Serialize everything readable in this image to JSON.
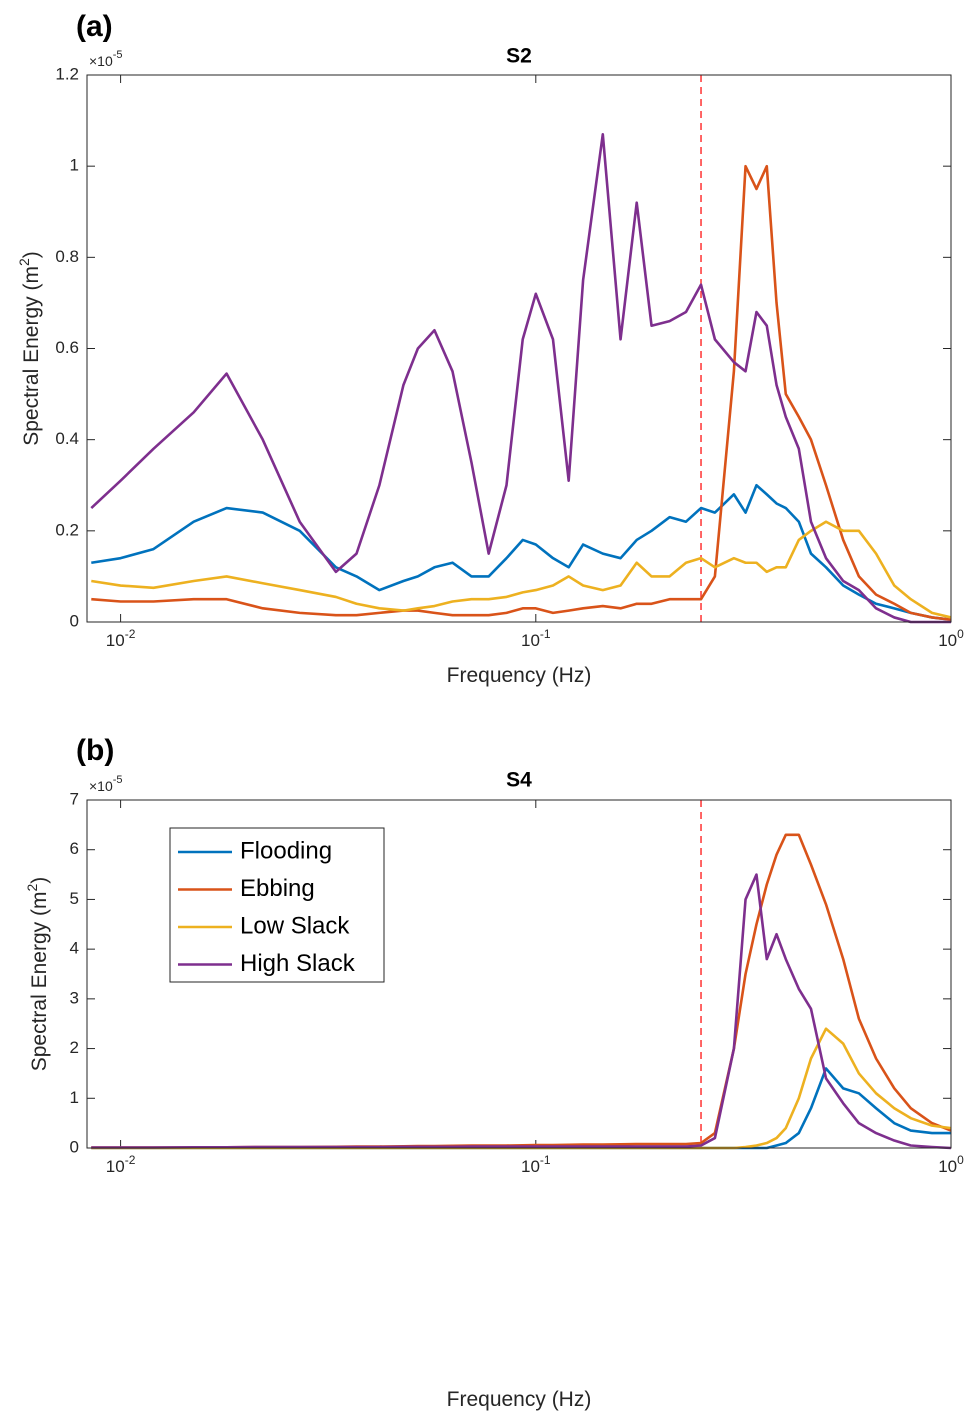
{
  "chart_data": [
    {
      "type": "line",
      "panel_label": "(a)",
      "title": "S2",
      "x_label": "Frequency (Hz)",
      "y_label": {
        "text": "Spectral Energy (m",
        "sup": "2",
        "end": ")"
      },
      "y_multiplier": {
        "base": "×10",
        "exponent": "-5"
      },
      "x_scale": "log",
      "xlim": [
        0.0083,
        1
      ],
      "ylim": [
        0,
        1.2
      ],
      "xticks": [
        {
          "value": 0.01,
          "label": {
            "base": "10",
            "exponent": "-2"
          }
        },
        {
          "value": 0.1,
          "label": {
            "base": "10",
            "exponent": "-1"
          }
        },
        {
          "value": 1,
          "label": {
            "base": "10",
            "exponent": "0"
          }
        }
      ],
      "yticks": [
        0,
        0.2,
        0.4,
        0.6,
        0.8,
        1,
        1.2
      ],
      "vline": {
        "x": 0.25,
        "color": "#ff3333"
      },
      "x": [
        0.0085,
        0.01,
        0.012,
        0.015,
        0.018,
        0.022,
        0.027,
        0.033,
        0.037,
        0.042,
        0.048,
        0.052,
        0.057,
        0.063,
        0.07,
        0.077,
        0.085,
        0.093,
        0.1,
        0.11,
        0.12,
        0.13,
        0.145,
        0.16,
        0.175,
        0.19,
        0.21,
        0.23,
        0.25,
        0.27,
        0.3,
        0.32,
        0.34,
        0.36,
        0.38,
        0.4,
        0.43,
        0.46,
        0.5,
        0.55,
        0.6,
        0.66,
        0.73,
        0.8,
        0.9,
        1.0
      ],
      "series": [
        {
          "color": "#0072bd",
          "values": [
            0.13,
            0.14,
            0.16,
            0.22,
            0.25,
            0.24,
            0.2,
            0.12,
            0.1,
            0.07,
            0.09,
            0.1,
            0.12,
            0.13,
            0.1,
            0.1,
            0.14,
            0.18,
            0.17,
            0.14,
            0.12,
            0.17,
            0.15,
            0.14,
            0.18,
            0.2,
            0.23,
            0.22,
            0.25,
            0.24,
            0.28,
            0.24,
            0.3,
            0.28,
            0.26,
            0.25,
            0.22,
            0.15,
            0.12,
            0.08,
            0.06,
            0.04,
            0.03,
            0.02,
            0.01,
            0.005
          ]
        },
        {
          "color": "#d95319",
          "values": [
            0.05,
            0.045,
            0.045,
            0.05,
            0.05,
            0.03,
            0.02,
            0.015,
            0.015,
            0.02,
            0.025,
            0.025,
            0.02,
            0.015,
            0.015,
            0.015,
            0.02,
            0.03,
            0.03,
            0.02,
            0.025,
            0.03,
            0.035,
            0.03,
            0.04,
            0.04,
            0.05,
            0.05,
            0.05,
            0.1,
            0.55,
            1.0,
            0.95,
            1.0,
            0.7,
            0.5,
            0.45,
            0.4,
            0.3,
            0.18,
            0.1,
            0.06,
            0.04,
            0.02,
            0.01,
            0.005
          ]
        },
        {
          "color": "#edb120",
          "values": [
            0.09,
            0.08,
            0.075,
            0.09,
            0.1,
            0.085,
            0.07,
            0.055,
            0.04,
            0.03,
            0.025,
            0.03,
            0.035,
            0.045,
            0.05,
            0.05,
            0.055,
            0.065,
            0.07,
            0.08,
            0.1,
            0.08,
            0.07,
            0.08,
            0.13,
            0.1,
            0.1,
            0.13,
            0.14,
            0.12,
            0.14,
            0.13,
            0.13,
            0.11,
            0.12,
            0.12,
            0.18,
            0.2,
            0.22,
            0.2,
            0.2,
            0.15,
            0.08,
            0.05,
            0.02,
            0.01
          ]
        },
        {
          "color": "#7e2f8e",
          "values": [
            0.25,
            0.31,
            0.38,
            0.46,
            0.545,
            0.4,
            0.22,
            0.11,
            0.15,
            0.3,
            0.52,
            0.6,
            0.64,
            0.55,
            0.35,
            0.15,
            0.3,
            0.62,
            0.72,
            0.62,
            0.31,
            0.75,
            1.07,
            0.62,
            0.92,
            0.65,
            0.66,
            0.68,
            0.74,
            0.62,
            0.57,
            0.55,
            0.68,
            0.65,
            0.52,
            0.45,
            0.38,
            0.22,
            0.14,
            0.09,
            0.07,
            0.03,
            0.01,
            0,
            0,
            0
          ]
        }
      ]
    },
    {
      "type": "line",
      "panel_label": "(b)",
      "title": "S4",
      "x_label": "Frequency (Hz)",
      "y_label": {
        "text": "Spectral Energy (m",
        "sup": "2",
        "end": ")"
      },
      "y_multiplier": {
        "base": "×10",
        "exponent": "-5"
      },
      "x_scale": "log",
      "xlim": [
        0.0083,
        1
      ],
      "ylim": [
        0,
        7
      ],
      "xticks": [
        {
          "value": 0.01,
          "label": {
            "base": "10",
            "exponent": "-2"
          }
        },
        {
          "value": 0.1,
          "label": {
            "base": "10",
            "exponent": "-1"
          }
        },
        {
          "value": 1,
          "label": {
            "base": "10",
            "exponent": "0"
          }
        }
      ],
      "yticks": [
        0,
        1,
        2,
        3,
        4,
        5,
        6,
        7
      ],
      "vline": {
        "x": 0.25,
        "color": "#ff3333"
      },
      "legend": "upper left",
      "x": [
        0.0085,
        0.01,
        0.012,
        0.015,
        0.018,
        0.022,
        0.027,
        0.033,
        0.037,
        0.042,
        0.048,
        0.052,
        0.057,
        0.063,
        0.07,
        0.077,
        0.085,
        0.093,
        0.1,
        0.11,
        0.12,
        0.13,
        0.145,
        0.16,
        0.175,
        0.19,
        0.21,
        0.23,
        0.25,
        0.27,
        0.3,
        0.32,
        0.34,
        0.36,
        0.38,
        0.4,
        0.43,
        0.46,
        0.5,
        0.55,
        0.6,
        0.66,
        0.73,
        0.8,
        0.9,
        1.0
      ],
      "series": [
        {
          "name": "Flooding",
          "color": "#0072bd",
          "values": [
            0,
            0,
            0,
            0,
            0,
            0,
            0,
            0,
            0,
            0,
            0,
            0,
            0,
            0,
            0,
            0,
            0,
            0,
            0,
            0,
            0,
            0,
            0,
            0,
            0,
            0,
            0,
            0,
            0,
            0,
            0,
            0,
            0,
            0,
            0.05,
            0.1,
            0.3,
            0.8,
            1.6,
            1.2,
            1.1,
            0.8,
            0.5,
            0.35,
            0.3,
            0.3
          ]
        },
        {
          "name": "Ebbing",
          "color": "#d95319",
          "values": [
            0.01,
            0.01,
            0.01,
            0.01,
            0.015,
            0.02,
            0.02,
            0.025,
            0.03,
            0.03,
            0.035,
            0.04,
            0.04,
            0.045,
            0.05,
            0.05,
            0.05,
            0.055,
            0.06,
            0.06,
            0.065,
            0.07,
            0.07,
            0.075,
            0.08,
            0.08,
            0.08,
            0.08,
            0.1,
            0.3,
            2.0,
            3.5,
            4.5,
            5.3,
            5.9,
            6.3,
            6.3,
            5.7,
            4.9,
            3.8,
            2.6,
            1.8,
            1.2,
            0.8,
            0.5,
            0.35
          ]
        },
        {
          "name": "Low Slack",
          "color": "#edb120",
          "values": [
            0,
            0,
            0,
            0,
            0,
            0,
            0,
            0,
            0,
            0,
            0,
            0,
            0,
            0,
            0,
            0,
            0,
            0,
            0,
            0,
            0,
            0,
            0,
            0,
            0,
            0,
            0,
            0,
            0,
            0,
            0,
            0.02,
            0.05,
            0.1,
            0.2,
            0.4,
            1.0,
            1.8,
            2.4,
            2.1,
            1.5,
            1.1,
            0.8,
            0.6,
            0.45,
            0.4
          ]
        },
        {
          "name": "High Slack",
          "color": "#7e2f8e",
          "values": [
            0.01,
            0.01,
            0.01,
            0.015,
            0.015,
            0.02,
            0.02,
            0.02,
            0.02,
            0.02,
            0.025,
            0.025,
            0.025,
            0.025,
            0.03,
            0.03,
            0.03,
            0.03,
            0.03,
            0.03,
            0.03,
            0.03,
            0.03,
            0.03,
            0.03,
            0.03,
            0.03,
            0.03,
            0.05,
            0.2,
            2.0,
            5.0,
            5.5,
            3.8,
            4.3,
            3.8,
            3.2,
            2.8,
            1.4,
            0.9,
            0.5,
            0.3,
            0.15,
            0.05,
            0.02,
            0
          ]
        }
      ]
    }
  ]
}
